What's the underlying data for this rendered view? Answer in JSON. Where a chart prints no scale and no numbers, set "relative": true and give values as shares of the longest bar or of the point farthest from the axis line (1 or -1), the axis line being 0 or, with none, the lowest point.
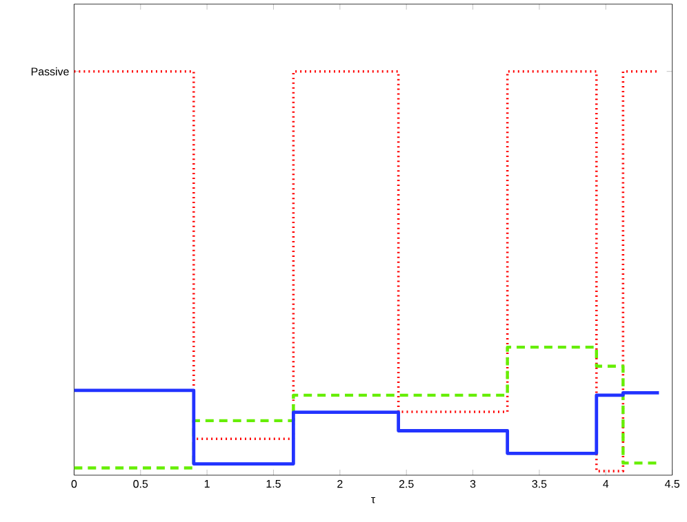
{
  "chart_data": {
    "type": "step",
    "relative": true,
    "xlabel": "τ",
    "annotations": [
      "Passive"
    ],
    "xlim": [
      0,
      4.5
    ],
    "xticks": [
      0,
      0.5,
      1,
      1.5,
      2,
      2.5,
      3,
      3.5,
      4,
      4.5
    ],
    "series": [
      {
        "color": "#ff0000",
        "line_style": "dotted",
        "x": [
          0,
          0.9,
          1.65,
          2.44,
          3.26,
          3.93,
          4.13,
          4.4
        ],
        "values": [
          1,
          0.09,
          1,
          0.157,
          1,
          0.01,
          1,
          1
        ]
      },
      {
        "color": "#66ee00",
        "line_style": "dashed",
        "x": [
          0,
          0.9,
          1.65,
          3.26,
          3.93,
          4.13,
          4.4
        ],
        "values": [
          0.018,
          0.135,
          0.198,
          0.317,
          0.27,
          0.03,
          0.03
        ]
      },
      {
        "color": "#2233ff",
        "line_style": "solid",
        "x": [
          0,
          0.9,
          1.65,
          2.44,
          3.26,
          3.93,
          4.13,
          4.4
        ],
        "values": [
          0.21,
          0.028,
          0.156,
          0.11,
          0.054,
          0.198,
          0.204,
          0.204
        ]
      }
    ]
  }
}
